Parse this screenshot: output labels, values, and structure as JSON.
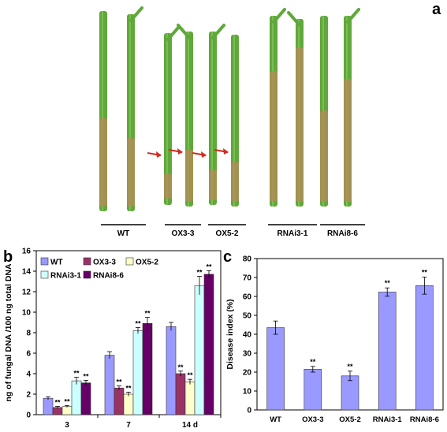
{
  "panels": {
    "a": {
      "letter": "a",
      "groups": [
        "WT",
        "OX3-3",
        "OX5-2",
        "RNAi3-1",
        "RNAi8-6"
      ]
    },
    "b": {
      "letter": "b"
    },
    "c": {
      "letter": "c"
    }
  },
  "colors": {
    "WT": "#9999ff",
    "OX3-3": "#993366",
    "OX5-2": "#ffffcc",
    "RNAi3-1": "#ccffff",
    "RNAi8-6": "#660066",
    "photo_bg": "#ffffff",
    "stem": "#5fa83a",
    "lesion": "#b88a5a",
    "arrow": "#d62a1c"
  },
  "chart_data": [
    {
      "panel": "b",
      "type": "bar",
      "categories": [
        "3",
        "7",
        "14 d"
      ],
      "ylabel": "ng of fungal DNA /100 ng total DNA",
      "xlabel": "",
      "ylim": [
        0,
        16
      ],
      "yticks": [
        0,
        2,
        4,
        6,
        8,
        10,
        12,
        14,
        16
      ],
      "legend_placement": "top-left",
      "grid": false,
      "series": [
        {
          "name": "WT",
          "values": [
            1.6,
            5.8,
            8.6
          ],
          "errors": [
            0.15,
            0.35,
            0.4
          ],
          "sig": [
            "",
            "",
            ""
          ]
        },
        {
          "name": "OX3-3",
          "values": [
            0.7,
            2.6,
            4.0
          ],
          "errors": [
            0.1,
            0.2,
            0.25
          ],
          "sig": [
            "**",
            "**",
            "**"
          ]
        },
        {
          "name": "OX5-2",
          "values": [
            0.8,
            2.0,
            3.2
          ],
          "errors": [
            0.1,
            0.2,
            0.25
          ],
          "sig": [
            "**",
            "**",
            "**"
          ]
        },
        {
          "name": "RNAi3-1",
          "values": [
            3.3,
            8.2,
            12.6
          ],
          "errors": [
            0.35,
            0.3,
            0.9
          ],
          "sig": [
            "**",
            "**",
            "**"
          ]
        },
        {
          "name": "RNAi8-6",
          "values": [
            3.1,
            8.9,
            13.7
          ],
          "errors": [
            0.25,
            0.6,
            0.35
          ],
          "sig": [
            "**",
            "**",
            "**"
          ]
        }
      ]
    },
    {
      "panel": "c",
      "type": "bar",
      "categories": [
        "WT",
        "OX3-3",
        "OX5-2",
        "RNAi3-1",
        "RNAi8-6"
      ],
      "values": [
        43.5,
        21.5,
        18.0,
        62.3,
        65.7
      ],
      "errors": [
        3.5,
        1.5,
        2.5,
        2.2,
        4.5
      ],
      "sig": [
        "",
        "**",
        "**",
        "**",
        "**"
      ],
      "ylabel": "Disease index (%)",
      "xlabel": "",
      "ylim": [
        0,
        80
      ],
      "yticks": [
        0,
        10,
        20,
        30,
        40,
        50,
        60,
        70,
        80
      ],
      "grid": false,
      "color": "#9999ff"
    }
  ]
}
